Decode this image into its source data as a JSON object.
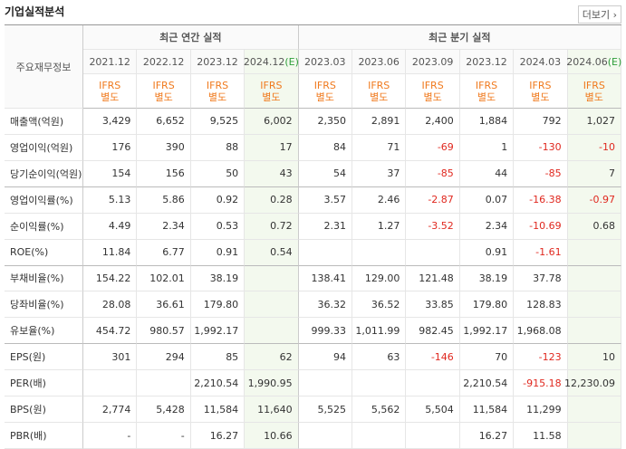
{
  "header": {
    "title": "기업실적분석",
    "more": "더보기"
  },
  "table": {
    "corner": "주요재무정보",
    "groups": [
      {
        "label": "최근 연간 실적",
        "span": 4
      },
      {
        "label": "최근 분기 실적",
        "span": 6
      }
    ],
    "periods": [
      {
        "date": "2021.12"
      },
      {
        "date": "2022.12"
      },
      {
        "date": "2023.12"
      },
      {
        "date": "2024.12",
        "estimate": "(E)"
      },
      {
        "date": "2023.03"
      },
      {
        "date": "2023.06"
      },
      {
        "date": "2023.09"
      },
      {
        "date": "2023.12"
      },
      {
        "date": "2024.03"
      },
      {
        "date": "2024.06",
        "estimate": "(E)"
      }
    ],
    "accounting": [
      "IFRS\n별도",
      "IFRS\n별도",
      "IFRS\n별도",
      "IFRS\n별도",
      "IFRS\n별도",
      "IFRS\n별도",
      "IFRS\n별도",
      "IFRS\n별도",
      "IFRS\n별도",
      "IFRS\n별도"
    ],
    "rows": [
      {
        "label": "매출액(억원)",
        "cells": [
          "3,429",
          "6,652",
          "9,525",
          "6,002",
          "2,350",
          "2,891",
          "2,400",
          "1,884",
          "792",
          "1,027"
        ]
      },
      {
        "label": "영업이익(억원)",
        "cells": [
          "176",
          "390",
          "88",
          "17",
          "84",
          "71",
          "-69",
          "1",
          "-130",
          "-10"
        ]
      },
      {
        "label": "당기순이익(억원)",
        "cells": [
          "154",
          "156",
          "50",
          "43",
          "54",
          "37",
          "-85",
          "44",
          "-85",
          "7"
        ]
      },
      {
        "label": "영업이익률(%)",
        "cells": [
          "5.13",
          "5.86",
          "0.92",
          "0.28",
          "3.57",
          "2.46",
          "-2.87",
          "0.07",
          "-16.38",
          "-0.97"
        ]
      },
      {
        "label": "순이익률(%)",
        "cells": [
          "4.49",
          "2.34",
          "0.53",
          "0.72",
          "2.31",
          "1.27",
          "-3.52",
          "2.34",
          "-10.69",
          "0.68"
        ]
      },
      {
        "label": "ROE(%)",
        "cells": [
          "11.84",
          "6.77",
          "0.91",
          "0.54",
          null,
          null,
          null,
          "0.91",
          "-1.61",
          null
        ]
      },
      {
        "label": "부채비율(%)",
        "cells": [
          "154.22",
          "102.01",
          "38.19",
          null,
          "138.41",
          "129.00",
          "121.48",
          "38.19",
          "37.78",
          null
        ]
      },
      {
        "label": "당좌비율(%)",
        "cells": [
          "28.08",
          "36.61",
          "179.80",
          null,
          "36.32",
          "36.52",
          "33.85",
          "179.80",
          "128.83",
          null
        ]
      },
      {
        "label": "유보율(%)",
        "cells": [
          "454.72",
          "980.57",
          "1,992.17",
          null,
          "999.33",
          "1,011.99",
          "982.45",
          "1,992.17",
          "1,968.08",
          null
        ]
      },
      {
        "label": "EPS(원)",
        "cells": [
          "301",
          "294",
          "85",
          "62",
          "94",
          "63",
          "-146",
          "70",
          "-123",
          "10"
        ]
      },
      {
        "label": "PER(배)",
        "cells": [
          null,
          null,
          "2,210.54",
          "1,990.95",
          null,
          null,
          null,
          "2,210.54",
          "-915.18",
          "12,230.09"
        ]
      },
      {
        "label": "BPS(원)",
        "cells": [
          "2,774",
          "5,428",
          "11,584",
          "11,640",
          "5,525",
          "5,562",
          "5,504",
          "11,584",
          "11,299",
          null
        ]
      },
      {
        "label": "PBR(배)",
        "cells": [
          "-",
          "-",
          "16.27",
          "10.66",
          null,
          null,
          null,
          "16.27",
          "11.58",
          null
        ]
      }
    ]
  }
}
